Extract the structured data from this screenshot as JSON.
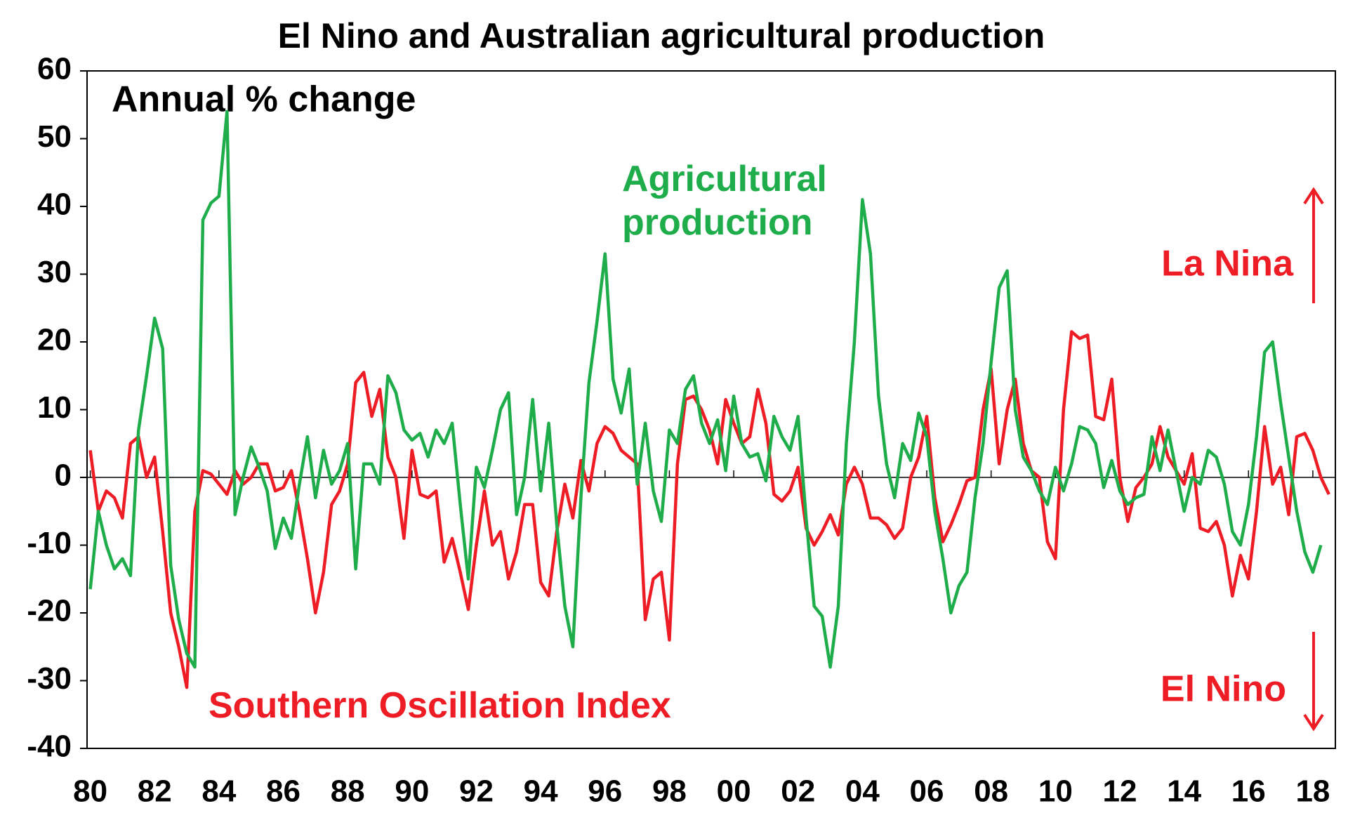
{
  "chart_data": {
    "type": "line",
    "title": "El Nino and Australian agricultural production",
    "annotations": {
      "unit": "Annual % change",
      "up": "La Nina",
      "down": "El Nino"
    },
    "x": [
      1980,
      1980.25,
      1980.5,
      1980.75,
      1981,
      1981.25,
      1981.5,
      1981.75,
      1982,
      1982.25,
      1982.5,
      1982.75,
      1983,
      1983.25,
      1983.5,
      1983.75,
      1984,
      1984.25,
      1984.5,
      1984.75,
      1985,
      1985.25,
      1985.5,
      1985.75,
      1986,
      1986.25,
      1986.5,
      1986.75,
      1987,
      1987.25,
      1987.5,
      1987.75,
      1988,
      1988.25,
      1988.5,
      1988.75,
      1989,
      1989.25,
      1989.5,
      1989.75,
      1990,
      1990.25,
      1990.5,
      1990.75,
      1991,
      1991.25,
      1991.5,
      1991.75,
      1992,
      1992.25,
      1992.5,
      1992.75,
      1993,
      1993.25,
      1993.5,
      1993.75,
      1994,
      1994.25,
      1994.5,
      1994.75,
      1995,
      1995.25,
      1995.5,
      1995.75,
      1996,
      1996.25,
      1996.5,
      1996.75,
      1997,
      1997.25,
      1997.5,
      1997.75,
      1998,
      1998.25,
      1998.5,
      1998.75,
      1999,
      1999.25,
      1999.5,
      1999.75,
      2000,
      2000.25,
      2000.5,
      2000.75,
      2001,
      2001.25,
      2001.5,
      2001.75,
      2002,
      2002.25,
      2002.5,
      2002.75,
      2003,
      2003.25,
      2003.5,
      2003.75,
      2004,
      2004.25,
      2004.5,
      2004.75,
      2005,
      2005.25,
      2005.5,
      2005.75,
      2006,
      2006.25,
      2006.5,
      2006.75,
      2007,
      2007.25,
      2007.5,
      2007.75,
      2008,
      2008.25,
      2008.5,
      2008.75,
      2009,
      2009.25,
      2009.5,
      2009.75,
      2010,
      2010.25,
      2010.5,
      2010.75,
      2011,
      2011.25,
      2011.5,
      2011.75,
      2012,
      2012.25,
      2012.5,
      2012.75,
      2013,
      2013.25,
      2013.5,
      2013.75,
      2014,
      2014.25,
      2014.5,
      2014.75,
      2015,
      2015.25,
      2015.5,
      2015.75,
      2016,
      2016.25,
      2016.5,
      2016.75,
      2017,
      2017.25,
      2017.5,
      2017.75,
      2018,
      2018.25,
      2018.5
    ],
    "series": [
      {
        "name": "Southern Oscillation Index",
        "color": "#ee1c25",
        "values": [
          4,
          -5,
          -2,
          -3,
          -6,
          5,
          6,
          0,
          3,
          -8,
          -20,
          -25,
          -31,
          -5,
          1,
          0.5,
          -1,
          -2.5,
          1,
          -1,
          0,
          2,
          2,
          -2,
          -1.5,
          1,
          -5,
          -12,
          -20,
          -14,
          -4,
          -2,
          2,
          14,
          15.5,
          9,
          13,
          3,
          0,
          -9,
          4,
          -2.5,
          -3,
          -2,
          -12.5,
          -9,
          -14,
          -19.5,
          -10,
          -2,
          -10,
          -8,
          -15,
          -11,
          -4,
          -4,
          -15.5,
          -17.5,
          -8,
          -1,
          -6,
          2.5,
          -2,
          5,
          7.5,
          6.5,
          4,
          3,
          2,
          -21,
          -15,
          -14,
          -24,
          2,
          11.5,
          12,
          10,
          7,
          2,
          11.5,
          8,
          5,
          6,
          13,
          8,
          -2.5,
          -3.5,
          -2,
          1.5,
          -7.5,
          -10,
          -8,
          -5.5,
          -8.5,
          -1,
          1.5,
          -1,
          -6,
          -6,
          -7,
          -9,
          -7.5,
          0,
          3,
          9,
          -3,
          -9.5,
          -7,
          -4,
          -0.5,
          0,
          10,
          16,
          2,
          10,
          14.5,
          5,
          1,
          0,
          -9.5,
          -12,
          10,
          21.5,
          20.5,
          21,
          9,
          8.5,
          14.5,
          0,
          -6.5,
          -1.5,
          0,
          2,
          7.5,
          3,
          1,
          -1,
          3.5,
          -7.5,
          -8,
          -6.5,
          -10,
          -17.5,
          -11.5,
          -15,
          -5,
          7.5,
          -1,
          1.5,
          -5.5,
          6,
          6.5,
          4,
          0,
          -2.5
        ]
      },
      {
        "name": "Agricultural production",
        "color": "#1fad4b",
        "values": [
          -16.5,
          -5,
          -10,
          -13.5,
          -12,
          -14.5,
          7,
          15,
          23.5,
          19,
          -13,
          -21,
          -26,
          -28,
          38,
          40.5,
          41.5,
          54,
          -5.5,
          0,
          4.5,
          1.5,
          -2,
          -10.5,
          -6,
          -9,
          -1,
          6,
          -3,
          4,
          -1,
          1,
          5,
          -13.5,
          2,
          2,
          -1,
          15,
          12.5,
          7,
          5.5,
          6.5,
          3,
          7,
          5,
          8,
          -4,
          -15,
          1.5,
          -1.5,
          4,
          10,
          12.5,
          -5.5,
          0,
          11.5,
          -2,
          8,
          -7,
          -19,
          -25,
          -3,
          14,
          23,
          33,
          14.5,
          9.5,
          16,
          -1,
          8,
          -2,
          -6.5,
          7,
          5,
          13,
          15,
          8,
          5,
          8.5,
          1,
          12,
          5,
          3,
          3.5,
          -0.5,
          9,
          6,
          4,
          9,
          -6,
          -19,
          -20.5,
          -28,
          -19,
          5,
          20,
          41,
          33,
          12,
          2,
          -3,
          5,
          2.5,
          9.5,
          6,
          -5,
          -12,
          -20,
          -16,
          -14,
          -3,
          5,
          17,
          28,
          30.5,
          10,
          3,
          1,
          -2,
          -4,
          1.5,
          -2,
          2,
          7.5,
          7,
          5,
          -1.5,
          2.5,
          -2,
          -4,
          -3,
          -2.5,
          6,
          1,
          7,
          1,
          -5,
          0,
          -1,
          4,
          3,
          -1,
          -8,
          -10,
          -4,
          6,
          18.5,
          20,
          11,
          3,
          -5,
          -11,
          -14,
          -10,
          null
        ]
      }
    ],
    "xlim": [
      1979.9,
      2018.7
    ],
    "xticks": [
      {
        "value": 1980,
        "label": "80"
      },
      {
        "value": 1982,
        "label": "82"
      },
      {
        "value": 1984,
        "label": "84"
      },
      {
        "value": 1986,
        "label": "86"
      },
      {
        "value": 1988,
        "label": "88"
      },
      {
        "value": 1990,
        "label": "90"
      },
      {
        "value": 1992,
        "label": "92"
      },
      {
        "value": 1994,
        "label": "94"
      },
      {
        "value": 1996,
        "label": "96"
      },
      {
        "value": 1998,
        "label": "98"
      },
      {
        "value": 2000,
        "label": "00"
      },
      {
        "value": 2002,
        "label": "02"
      },
      {
        "value": 2004,
        "label": "04"
      },
      {
        "value": 2006,
        "label": "06"
      },
      {
        "value": 2008,
        "label": "08"
      },
      {
        "value": 2010,
        "label": "10"
      },
      {
        "value": 2012,
        "label": "12"
      },
      {
        "value": 2014,
        "label": "14"
      },
      {
        "value": 2016,
        "label": "16"
      },
      {
        "value": 2018,
        "label": "18"
      }
    ],
    "ylim": [
      -40,
      60
    ],
    "yticks": [
      -40,
      -30,
      -20,
      -10,
      0,
      10,
      20,
      30,
      40,
      50,
      60
    ]
  }
}
